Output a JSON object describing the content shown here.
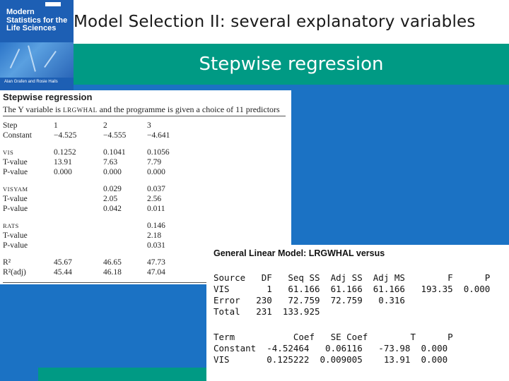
{
  "slide": {
    "title": "Model Selection II: several explanatory variables",
    "subtitle": "Stepwise regression"
  },
  "book_cover": {
    "publisher": "OXFORD",
    "title_lines": [
      "Modern",
      "Statistics for the",
      "Life Sciences"
    ],
    "authors": "Alan Grafen and Rosie Hails"
  },
  "excerpt": {
    "heading": "Stepwise regression",
    "intro_before": "The Y variable is ",
    "intro_var": "LRGWHAL",
    "intro_after": " and the programme is given a choice of 11 predictors",
    "rows": [
      {
        "label": "Step",
        "sc": false,
        "c1": "1",
        "c2": "2",
        "c3": "3"
      },
      {
        "label": "Constant",
        "sc": false,
        "c1": "−4.525",
        "c2": "−4.555",
        "c3": "−4.641"
      },
      {
        "label": "VIS",
        "sc": true,
        "c1": "0.1252",
        "c2": "0.1041",
        "c3": "0.1056"
      },
      {
        "label": "T-value",
        "sc": false,
        "c1": "13.91",
        "c2": "7.63",
        "c3": "7.79"
      },
      {
        "label": "P-value",
        "sc": false,
        "c1": "0.000",
        "c2": "0.000",
        "c3": "0.000"
      },
      {
        "label": "VISYAM",
        "sc": true,
        "c1": "",
        "c2": "0.029",
        "c3": "0.037"
      },
      {
        "label": "T-value",
        "sc": false,
        "c1": "",
        "c2": "2.05",
        "c3": "2.56"
      },
      {
        "label": "P-value",
        "sc": false,
        "c1": "",
        "c2": "0.042",
        "c3": "0.011"
      },
      {
        "label": "RATS",
        "sc": true,
        "c1": "",
        "c2": "",
        "c3": "0.146"
      },
      {
        "label": "T-value",
        "sc": false,
        "c1": "",
        "c2": "",
        "c3": "2.18"
      },
      {
        "label": "P-value",
        "sc": false,
        "c1": "",
        "c2": "",
        "c3": "0.031"
      },
      {
        "label": "R²",
        "sc": false,
        "c1": "45.67",
        "c2": "46.65",
        "c3": "47.73"
      },
      {
        "label": "R²(adj)",
        "sc": false,
        "c1": "45.44",
        "c2": "46.18",
        "c3": "47.04"
      }
    ]
  },
  "minitab": {
    "heading": "General Linear Model: LRGWHAL versus",
    "anova_lines": [
      "Source   DF   Seq SS  Adj SS  Adj MS        F      P",
      "VIS       1   61.166  61.166  61.166   193.35  0.000",
      "Error   230   72.759  72.759   0.316",
      "Total   231  133.925"
    ],
    "coef_lines": [
      "Term           Coef   SE Coef        T      P",
      "Constant  -4.52464   0.06116   -73.98  0.000",
      "VIS       0.125222  0.009005    13.91  0.000"
    ]
  }
}
